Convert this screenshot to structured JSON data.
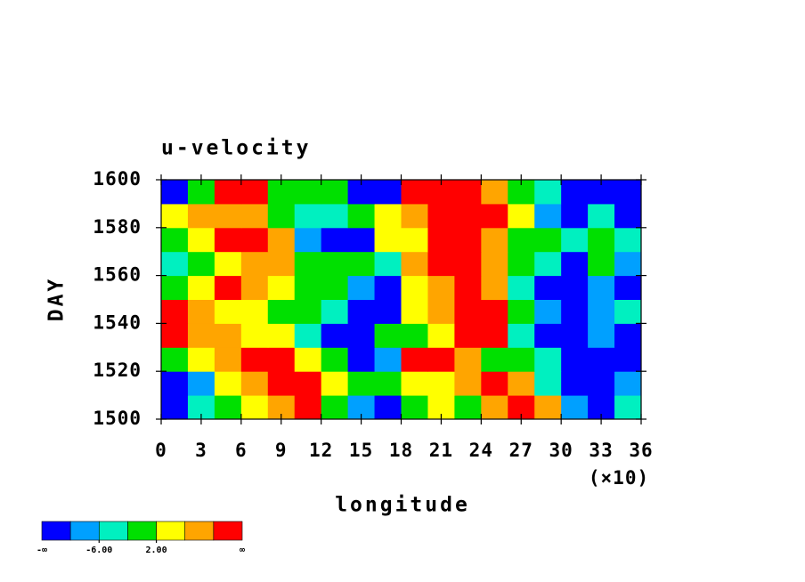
{
  "chart_data": {
    "type": "heatmap",
    "title": "u-velocity",
    "xlabel": "longitude",
    "ylabel": "DAY",
    "xlabel_multiplier": "(×10)",
    "xlim": [
      0,
      36
    ],
    "xticks": [
      0,
      3,
      6,
      9,
      12,
      15,
      18,
      21,
      24,
      27,
      30,
      33,
      36
    ],
    "ylim": [
      1500,
      1600
    ],
    "yticks": [
      1500,
      1520,
      1540,
      1560,
      1580,
      1600
    ],
    "x": [
      1,
      3,
      5,
      7,
      9,
      11,
      13,
      15,
      17,
      19,
      21,
      23,
      25,
      27,
      29,
      31,
      33,
      35
    ],
    "y": [
      1505,
      1515,
      1525,
      1535,
      1545,
      1555,
      1565,
      1575,
      1585,
      1595
    ],
    "z": [
      [
        -12,
        -4,
        0,
        4,
        8,
        12,
        0,
        -8,
        -12,
        0,
        4,
        0,
        8,
        12,
        8,
        -8,
        -12,
        -4
      ],
      [
        -12,
        -8,
        4,
        8,
        12,
        12,
        4,
        0,
        0,
        4,
        4,
        8,
        12,
        8,
        -4,
        -12,
        -12,
        -8
      ],
      [
        0,
        4,
        8,
        12,
        12,
        4,
        0,
        -12,
        -8,
        12,
        12,
        8,
        0,
        0,
        -4,
        -12,
        -12,
        -12
      ],
      [
        12,
        8,
        8,
        4,
        4,
        -4,
        -12,
        -12,
        0,
        0,
        4,
        12,
        12,
        -4,
        -12,
        -12,
        -8,
        -12
      ],
      [
        12,
        8,
        4,
        4,
        0,
        0,
        -4,
        -12,
        -12,
        4,
        8,
        12,
        12,
        0,
        -8,
        -12,
        -8,
        -4
      ],
      [
        0,
        4,
        12,
        8,
        4,
        0,
        0,
        -8,
        -12,
        4,
        8,
        12,
        8,
        -4,
        -12,
        -12,
        -8,
        -12
      ],
      [
        -4,
        0,
        4,
        8,
        8,
        0,
        0,
        0,
        -4,
        8,
        12,
        12,
        8,
        0,
        -4,
        -12,
        0,
        -8
      ],
      [
        0,
        4,
        12,
        12,
        8,
        -8,
        -12,
        -12,
        4,
        4,
        12,
        12,
        8,
        0,
        0,
        -4,
        0,
        -4
      ],
      [
        4,
        8,
        8,
        8,
        0,
        -4,
        -4,
        0,
        4,
        8,
        12,
        12,
        12,
        4,
        -8,
        -12,
        -4,
        -12
      ],
      [
        -12,
        0,
        12,
        12,
        0,
        0,
        0,
        -12,
        -12,
        12,
        12,
        12,
        8,
        0,
        -4,
        -12,
        -12,
        -12
      ]
    ],
    "colorbar": {
      "levels": [
        -10,
        -6,
        -2,
        2,
        6,
        10
      ],
      "colors": [
        "#0000ff",
        "#00a0ff",
        "#00f0c0",
        "#00e000",
        "#ffff00",
        "#ffa500",
        "#ff0000"
      ],
      "ticks": [
        {
          "value": null,
          "label": "-∞"
        },
        {
          "value": -6,
          "label": "-6.00"
        },
        {
          "value": 2,
          "label": "2.00"
        },
        {
          "value": null,
          "label": "∞"
        }
      ]
    }
  }
}
